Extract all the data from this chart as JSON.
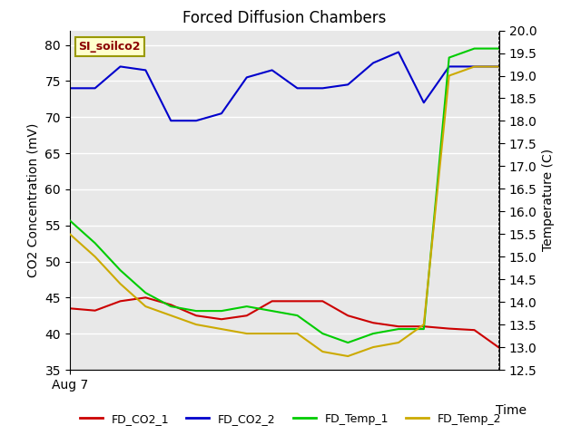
{
  "title": "Forced Diffusion Chambers",
  "xlabel": "Time",
  "ylabel_left": "CO2 Concentration (mV)",
  "ylabel_right": "Temperature (C)",
  "annotation": "SI_soilco2",
  "ylim_left": [
    35,
    82
  ],
  "ylim_right": [
    12.5,
    20.0
  ],
  "background_color": "#e8e8e8",
  "x_values": [
    0,
    1,
    2,
    3,
    4,
    5,
    6,
    7,
    8,
    9,
    10,
    11,
    12,
    13,
    14,
    15,
    16,
    17
  ],
  "FD_CO2_1": [
    43.5,
    43.2,
    44.5,
    45.0,
    44.0,
    42.5,
    42.0,
    42.5,
    44.5,
    44.5,
    44.5,
    42.5,
    41.5,
    41.0,
    41.0,
    40.7,
    40.5,
    38.0
  ],
  "FD_CO2_2": [
    74.0,
    74.0,
    77.0,
    76.5,
    69.5,
    69.5,
    70.5,
    75.5,
    76.5,
    74.0,
    74.0,
    74.5,
    77.5,
    79.0,
    72.0,
    77.0,
    77.0,
    77.0
  ],
  "FD_Temp_1": [
    15.8,
    15.3,
    14.7,
    14.2,
    13.9,
    13.8,
    13.8,
    13.9,
    13.8,
    13.7,
    13.3,
    13.1,
    13.3,
    13.4,
    13.4,
    19.4,
    19.6,
    19.6
  ],
  "FD_Temp_2": [
    15.5,
    15.0,
    14.4,
    13.9,
    13.7,
    13.5,
    13.4,
    13.3,
    13.3,
    13.3,
    12.9,
    12.8,
    13.0,
    13.1,
    13.5,
    19.0,
    19.2,
    19.2
  ],
  "color_CO2_1": "#cc0000",
  "color_CO2_2": "#0000cc",
  "color_Temp_1": "#00cc00",
  "color_Temp_2": "#ccaa00",
  "x_tick_label": "Aug 7",
  "x_tick_pos": 0,
  "right_ytick_step": 0.5,
  "left_ytick_step": 5,
  "legend_labels": [
    "FD_CO2_1",
    "FD_CO2_2",
    "FD_Temp_1",
    "FD_Temp_2"
  ]
}
